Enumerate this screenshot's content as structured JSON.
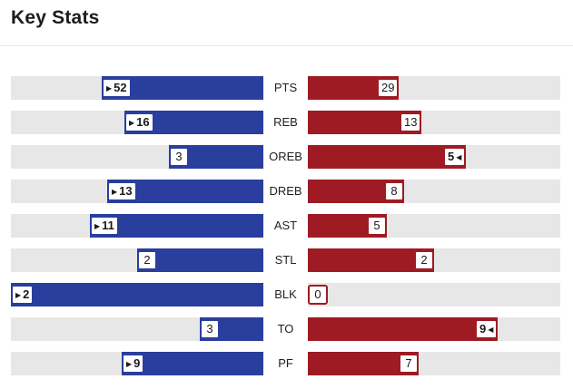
{
  "title": "Key Stats",
  "colors": {
    "home": "#2a3e9e",
    "away": "#9e1b23",
    "track": "#e7e7e7"
  },
  "icons": {
    "leader_left": "triangle-right-icon",
    "leader_right": "triangle-left-icon"
  },
  "stats": [
    {
      "label": "PTS",
      "left": 52,
      "right": 29
    },
    {
      "label": "REB",
      "left": 16,
      "right": 13
    },
    {
      "label": "OREB",
      "left": 3,
      "right": 5
    },
    {
      "label": "DREB",
      "left": 13,
      "right": 8
    },
    {
      "label": "AST",
      "left": 11,
      "right": 5
    },
    {
      "label": "STL",
      "left": 2,
      "right": 2
    },
    {
      "label": "BLK",
      "left": 2,
      "right": 0
    },
    {
      "label": "TO",
      "left": 3,
      "right": 9
    },
    {
      "label": "PF",
      "left": 9,
      "right": 7
    }
  ]
}
